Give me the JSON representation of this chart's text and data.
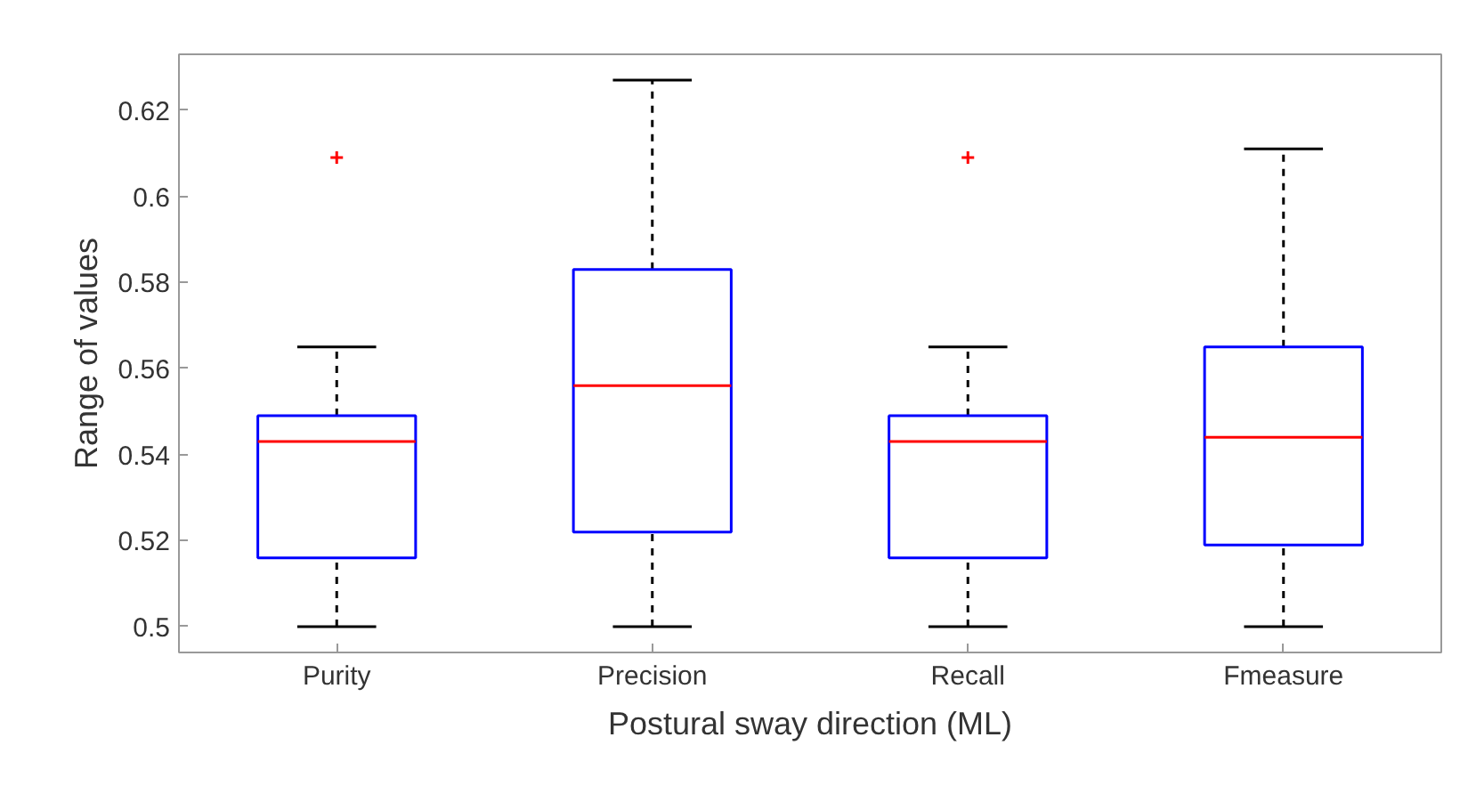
{
  "chart_data": {
    "type": "box",
    "xlabel": "Postural sway direction (ML)",
    "ylabel": "Range of values",
    "categories": [
      "Purity",
      "Precision",
      "Recall",
      "Fmeasure"
    ],
    "boxes": [
      {
        "low": 0.5,
        "q1": 0.516,
        "median": 0.543,
        "q3": 0.549,
        "high": 0.565,
        "outliers": [
          0.609
        ]
      },
      {
        "low": 0.5,
        "q1": 0.522,
        "median": 0.556,
        "q3": 0.583,
        "high": 0.627
      },
      {
        "low": 0.5,
        "q1": 0.516,
        "median": 0.543,
        "q3": 0.549,
        "high": 0.565,
        "outliers": [
          0.609
        ]
      },
      {
        "low": 0.5,
        "q1": 0.519,
        "median": 0.544,
        "q3": 0.565,
        "high": 0.611
      }
    ],
    "color": "#0000ff",
    "ylim": [
      0.494,
      0.633
    ],
    "yticks": [
      0.5,
      0.52,
      0.54,
      0.56,
      0.58,
      0.6,
      0.62
    ],
    "grid": false
  }
}
